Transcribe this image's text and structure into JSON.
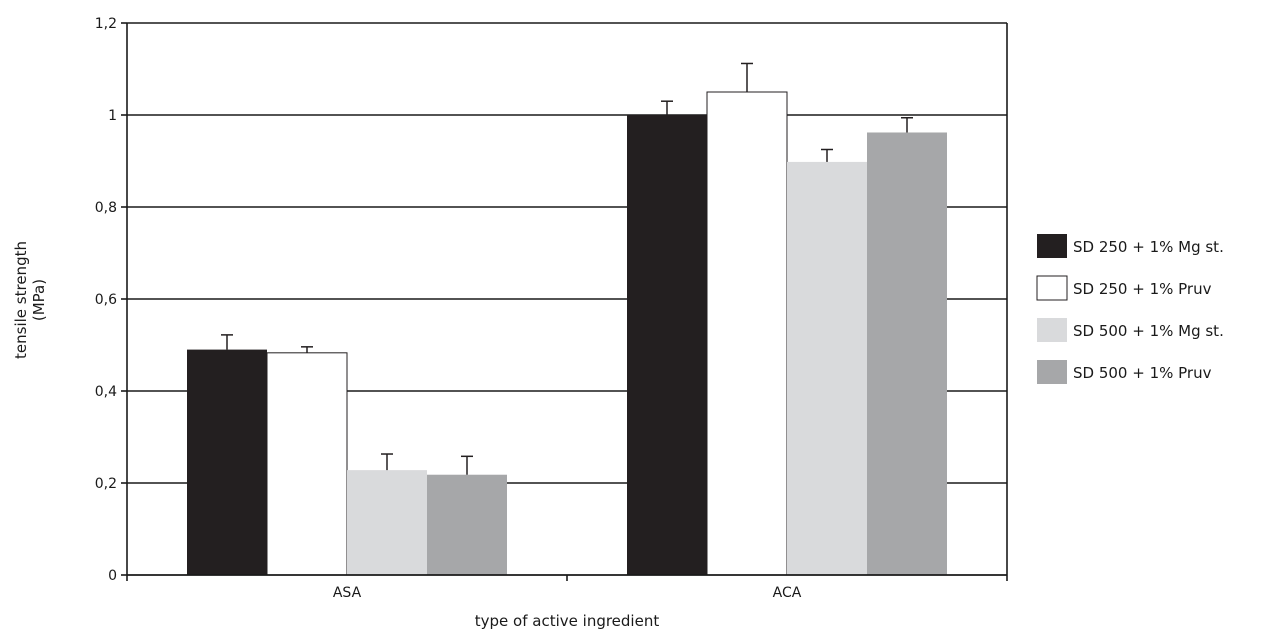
{
  "chart_data": {
    "type": "bar",
    "title": "",
    "xlabel": "type of active ingredient",
    "ylabel_lines": [
      "tensile strength",
      "(MPa)"
    ],
    "categories": [
      "ASA",
      "ACA"
    ],
    "ylim": [
      0,
      1.2
    ],
    "yticks": [
      0,
      0.2,
      0.4,
      0.6,
      0.8,
      1,
      1.2
    ],
    "ytick_labels": [
      "0",
      "0,2",
      "0,4",
      "0,6",
      "0,8",
      "1",
      "1,2"
    ],
    "grid": "horizontal",
    "legend_position": "right",
    "series": [
      {
        "name": "SD 250 + 1% Mg st.",
        "color": "#231f20",
        "values": [
          0.49,
          1.0
        ],
        "errors": [
          0.032,
          0.03
        ]
      },
      {
        "name": "SD 250 + 1% Pruv",
        "color": "#ffffff",
        "values": [
          0.483,
          1.05
        ],
        "errors": [
          0.013,
          0.062
        ]
      },
      {
        "name": "SD 500 + 1% Mg st.",
        "color": "#d9dadc",
        "values": [
          0.228,
          0.898
        ],
        "errors": [
          0.035,
          0.027
        ]
      },
      {
        "name": "SD 500 + 1% Pruv",
        "color": "#a6a7a9",
        "values": [
          0.218,
          0.962
        ],
        "errors": [
          0.04,
          0.032
        ]
      }
    ]
  }
}
